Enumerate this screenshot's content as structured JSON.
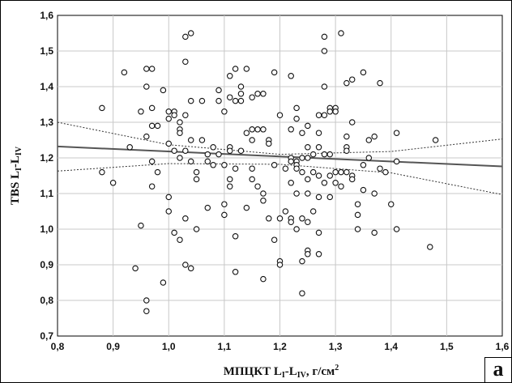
{
  "panel_label": "а",
  "chart_data": {
    "type": "scatter",
    "xlabel": {
      "main": "МПЦКТ L",
      "sub1": "I",
      "mid": "-L",
      "sub2": "IV",
      "tail": ", г/см",
      "sup": "2"
    },
    "ylabel": {
      "main": "TBS L",
      "sub1": "I",
      "mid": "-L",
      "sub2": "IV"
    },
    "xlim": [
      0.8,
      1.6
    ],
    "ylim": [
      0.7,
      1.6
    ],
    "xticks": [
      0.8,
      0.9,
      1.0,
      1.1,
      1.2,
      1.3,
      1.4,
      1.5,
      1.6
    ],
    "xtick_labels": [
      "0,8",
      "0,9",
      "1,0",
      "1,1",
      "1,2",
      "1,3",
      "1,4",
      "1,5",
      "1,6"
    ],
    "yticks": [
      0.7,
      0.8,
      0.9,
      1.0,
      1.1,
      1.2,
      1.3,
      1.4,
      1.5,
      1.6
    ],
    "ytick_labels": [
      "0,7",
      "0,8",
      "0,9",
      "1,0",
      "1,1",
      "1,2",
      "1,3",
      "1,4",
      "1,5",
      "1,6"
    ],
    "grid": true,
    "points": [
      [
        0.88,
        1.34
      ],
      [
        0.88,
        1.16
      ],
      [
        0.9,
        1.13
      ],
      [
        0.92,
        1.44
      ],
      [
        0.93,
        1.23
      ],
      [
        0.94,
        0.89
      ],
      [
        0.95,
        1.01
      ],
      [
        0.95,
        1.33
      ],
      [
        0.96,
        1.45
      ],
      [
        0.96,
        1.4
      ],
      [
        0.96,
        1.26
      ],
      [
        0.96,
        0.8
      ],
      [
        0.96,
        0.77
      ],
      [
        0.97,
        1.45
      ],
      [
        0.97,
        1.34
      ],
      [
        0.97,
        1.29
      ],
      [
        0.97,
        1.19
      ],
      [
        0.97,
        1.12
      ],
      [
        0.98,
        1.29
      ],
      [
        0.98,
        1.16
      ],
      [
        0.99,
        1.39
      ],
      [
        0.99,
        0.85
      ],
      [
        1.0,
        1.33
      ],
      [
        1.0,
        1.31
      ],
      [
        1.0,
        1.24
      ],
      [
        1.0,
        1.09
      ],
      [
        1.0,
        1.05
      ],
      [
        1.01,
        1.33
      ],
      [
        1.01,
        1.32
      ],
      [
        1.01,
        1.22
      ],
      [
        1.01,
        0.99
      ],
      [
        1.02,
        1.3
      ],
      [
        1.02,
        1.28
      ],
      [
        1.02,
        1.27
      ],
      [
        1.02,
        1.2
      ],
      [
        1.02,
        0.97
      ],
      [
        1.03,
        1.54
      ],
      [
        1.03,
        1.47
      ],
      [
        1.03,
        1.32
      ],
      [
        1.03,
        1.22
      ],
      [
        1.03,
        1.03
      ],
      [
        1.03,
        0.9
      ],
      [
        1.04,
        1.55
      ],
      [
        1.04,
        1.36
      ],
      [
        1.04,
        1.25
      ],
      [
        1.04,
        1.19
      ],
      [
        1.04,
        0.89
      ],
      [
        1.05,
        1.16
      ],
      [
        1.05,
        1.14
      ],
      [
        1.05,
        1.0
      ],
      [
        1.06,
        1.36
      ],
      [
        1.06,
        1.25
      ],
      [
        1.07,
        1.06
      ],
      [
        1.07,
        1.19
      ],
      [
        1.07,
        1.21
      ],
      [
        1.08,
        1.23
      ],
      [
        1.08,
        1.18
      ],
      [
        1.09,
        1.39
      ],
      [
        1.09,
        1.36
      ],
      [
        1.09,
        1.21
      ],
      [
        1.1,
        1.33
      ],
      [
        1.1,
        1.04
      ],
      [
        1.1,
        1.18
      ],
      [
        1.1,
        1.07
      ],
      [
        1.11,
        1.43
      ],
      [
        1.11,
        1.37
      ],
      [
        1.11,
        1.23
      ],
      [
        1.11,
        1.22
      ],
      [
        1.11,
        1.14
      ],
      [
        1.11,
        1.12
      ],
      [
        1.12,
        1.45
      ],
      [
        1.12,
        1.36
      ],
      [
        1.12,
        1.17
      ],
      [
        1.12,
        0.98
      ],
      [
        1.12,
        0.88
      ],
      [
        1.13,
        1.4
      ],
      [
        1.13,
        1.38
      ],
      [
        1.13,
        1.36
      ],
      [
        1.13,
        1.22
      ],
      [
        1.14,
        1.45
      ],
      [
        1.14,
        1.27
      ],
      [
        1.14,
        1.06
      ],
      [
        1.15,
        1.37
      ],
      [
        1.15,
        1.28
      ],
      [
        1.15,
        1.25
      ],
      [
        1.15,
        1.17
      ],
      [
        1.15,
        1.14
      ],
      [
        1.16,
        1.38
      ],
      [
        1.16,
        1.28
      ],
      [
        1.16,
        1.12
      ],
      [
        1.17,
        1.38
      ],
      [
        1.17,
        1.28
      ],
      [
        1.17,
        1.1
      ],
      [
        1.17,
        1.08
      ],
      [
        1.17,
        0.86
      ],
      [
        1.18,
        1.25
      ],
      [
        1.18,
        1.24
      ],
      [
        1.18,
        1.03
      ],
      [
        1.19,
        1.44
      ],
      [
        1.19,
        1.18
      ],
      [
        1.19,
        0.97
      ],
      [
        1.2,
        1.32
      ],
      [
        1.2,
        1.03
      ],
      [
        1.2,
        0.91
      ],
      [
        1.2,
        0.9
      ],
      [
        1.21,
        1.17
      ],
      [
        1.21,
        1.05
      ],
      [
        1.22,
        1.43
      ],
      [
        1.22,
        1.28
      ],
      [
        1.22,
        1.2
      ],
      [
        1.22,
        1.19
      ],
      [
        1.22,
        1.13
      ],
      [
        1.22,
        1.03
      ],
      [
        1.22,
        1.02
      ],
      [
        1.23,
        1.34
      ],
      [
        1.23,
        1.31
      ],
      [
        1.23,
        1.19
      ],
      [
        1.23,
        1.18
      ],
      [
        1.23,
        1.17
      ],
      [
        1.23,
        1.1
      ],
      [
        1.23,
        1.0
      ],
      [
        1.24,
        1.27
      ],
      [
        1.24,
        1.2
      ],
      [
        1.24,
        1.16
      ],
      [
        1.24,
        1.03
      ],
      [
        1.24,
        0.91
      ],
      [
        1.24,
        0.82
      ],
      [
        1.25,
        1.29
      ],
      [
        1.25,
        1.23
      ],
      [
        1.25,
        1.2
      ],
      [
        1.25,
        1.14
      ],
      [
        1.25,
        1.1
      ],
      [
        1.25,
        1.02
      ],
      [
        1.25,
        0.94
      ],
      [
        1.25,
        0.93
      ],
      [
        1.26,
        1.21
      ],
      [
        1.26,
        1.16
      ],
      [
        1.26,
        1.05
      ],
      [
        1.27,
        1.32
      ],
      [
        1.27,
        1.27
      ],
      [
        1.27,
        1.23
      ],
      [
        1.27,
        1.15
      ],
      [
        1.27,
        1.09
      ],
      [
        1.27,
        0.99
      ],
      [
        1.27,
        0.93
      ],
      [
        1.28,
        1.54
      ],
      [
        1.28,
        1.5
      ],
      [
        1.28,
        1.4
      ],
      [
        1.28,
        1.32
      ],
      [
        1.28,
        1.21
      ],
      [
        1.28,
        1.13
      ],
      [
        1.29,
        1.34
      ],
      [
        1.29,
        1.33
      ],
      [
        1.29,
        1.21
      ],
      [
        1.29,
        1.15
      ],
      [
        1.29,
        1.09
      ],
      [
        1.3,
        1.34
      ],
      [
        1.3,
        1.33
      ],
      [
        1.3,
        1.16
      ],
      [
        1.3,
        1.13
      ],
      [
        1.31,
        1.55
      ],
      [
        1.31,
        1.16
      ],
      [
        1.31,
        1.12
      ],
      [
        1.32,
        1.41
      ],
      [
        1.32,
        1.26
      ],
      [
        1.32,
        1.23
      ],
      [
        1.32,
        1.22
      ],
      [
        1.32,
        1.16
      ],
      [
        1.33,
        1.42
      ],
      [
        1.33,
        1.3
      ],
      [
        1.33,
        1.15
      ],
      [
        1.33,
        1.14
      ],
      [
        1.34,
        1.07
      ],
      [
        1.34,
        1.04
      ],
      [
        1.34,
        1.0
      ],
      [
        1.35,
        1.44
      ],
      [
        1.35,
        1.18
      ],
      [
        1.35,
        1.11
      ],
      [
        1.36,
        1.25
      ],
      [
        1.36,
        1.2
      ],
      [
        1.37,
        1.26
      ],
      [
        1.37,
        1.1
      ],
      [
        1.37,
        0.99
      ],
      [
        1.38,
        1.41
      ],
      [
        1.38,
        1.17
      ],
      [
        1.39,
        1.16
      ],
      [
        1.4,
        1.07
      ],
      [
        1.41,
        1.27
      ],
      [
        1.41,
        1.19
      ],
      [
        1.41,
        1.0
      ],
      [
        1.47,
        0.95
      ],
      [
        1.48,
        1.25
      ]
    ],
    "regression_line": {
      "x": [
        0.8,
        1.6
      ],
      "y": [
        1.232,
        1.176
      ]
    },
    "confidence_band": {
      "upper": {
        "x": [
          0.8,
          1.0,
          1.2,
          1.4,
          1.6
        ],
        "y": [
          1.3,
          1.237,
          1.21,
          1.218,
          1.253
        ]
      },
      "lower": {
        "x": [
          0.8,
          1.0,
          1.2,
          1.4,
          1.6
        ],
        "y": [
          1.163,
          1.184,
          1.182,
          1.158,
          1.097
        ]
      }
    }
  }
}
